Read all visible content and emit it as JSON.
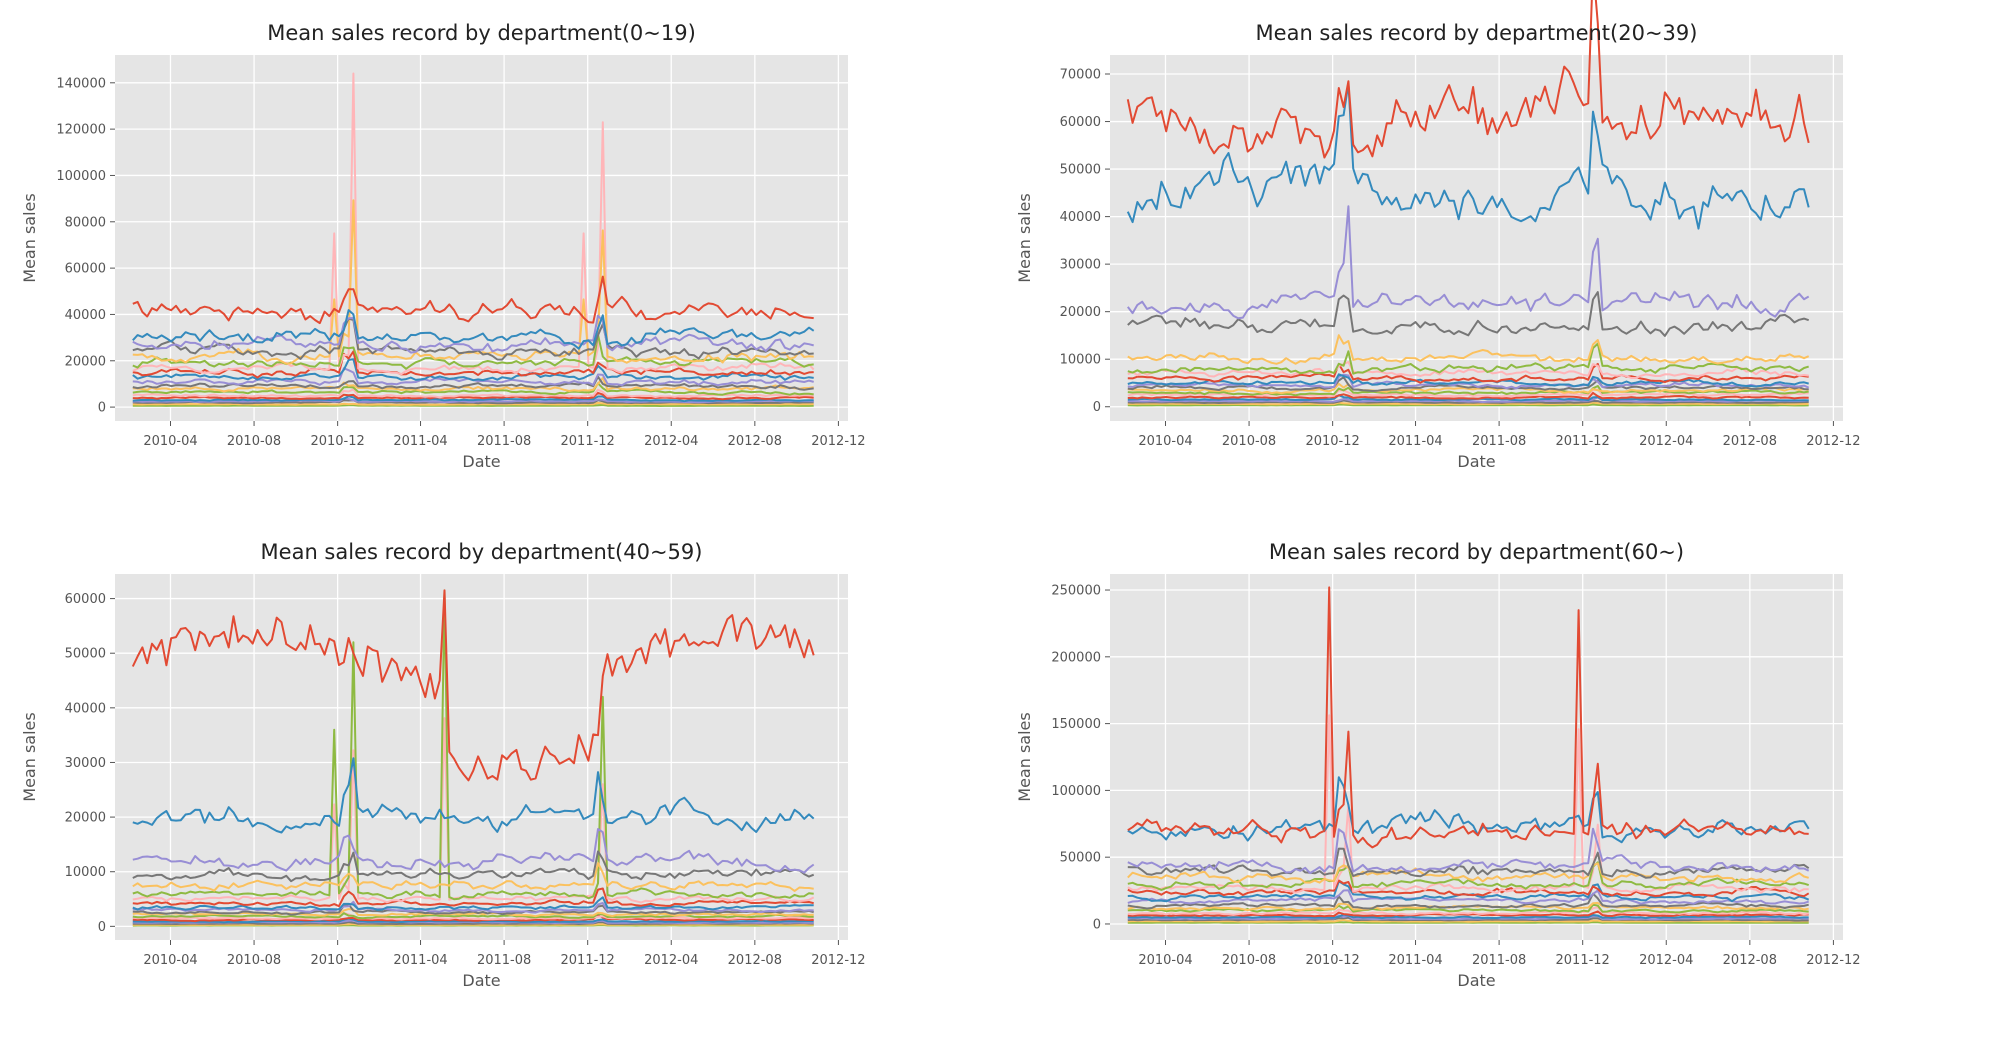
{
  "palette": [
    "#E24A33",
    "#348ABD",
    "#988ED5",
    "#777777",
    "#FBC15E",
    "#8EBA42",
    "#FFB5B8"
  ],
  "chart_data": [
    {
      "type": "line",
      "title": "Mean sales record by department(0~19)",
      "xlabel": "Date",
      "ylabel": "Mean sales",
      "xlim": [
        "2010-01-10",
        "2012-12-15"
      ],
      "ylim": [
        -6000,
        152000
      ],
      "xticks": [
        "2010-04",
        "2010-08",
        "2010-12",
        "2011-04",
        "2011-08",
        "2011-12",
        "2012-04",
        "2012-08",
        "2012-12"
      ],
      "yticks": [
        0,
        20000,
        40000,
        60000,
        80000,
        100000,
        120000,
        140000
      ],
      "ytick_labels": [
        "0",
        "20000",
        "40000",
        "60000",
        "80000",
        "100000",
        "120000",
        "140000"
      ],
      "grid": true,
      "series_count": 20,
      "data_start": "2010-02-05",
      "data_end": "2012-10-26",
      "peaks": [
        {
          "date": "2010-11-26",
          "value": 75000
        },
        {
          "date": "2010-12-24",
          "value": 144000
        },
        {
          "date": "2011-11-25",
          "value": 75000
        },
        {
          "date": "2011-12-23",
          "value": 123000
        }
      ]
    },
    {
      "type": "line",
      "title": "Mean sales record by department(20~39)",
      "xlabel": "Date",
      "ylabel": "Mean sales",
      "xlim": [
        "2010-01-10",
        "2012-12-15"
      ],
      "ylim": [
        -3000,
        74000
      ],
      "xticks": [
        "2010-04",
        "2010-08",
        "2010-12",
        "2011-04",
        "2011-08",
        "2011-12",
        "2012-04",
        "2012-08",
        "2012-12"
      ],
      "yticks": [
        0,
        10000,
        20000,
        30000,
        40000,
        50000,
        60000,
        70000
      ],
      "ytick_labels": [
        "0",
        "10000",
        "20000",
        "30000",
        "40000",
        "50000",
        "60000",
        "70000"
      ],
      "grid": true,
      "series_count": 20,
      "data_start": "2010-02-05",
      "data_end": "2012-10-26",
      "peaks": [
        {
          "date": "2010-12-24",
          "value": 68000
        },
        {
          "date": "2011-12-23",
          "value": 57000
        }
      ]
    },
    {
      "type": "line",
      "title": "Mean sales record by department(40~59)",
      "xlabel": "Date",
      "ylabel": "Mean sales",
      "xlim": [
        "2010-01-10",
        "2012-12-15"
      ],
      "ylim": [
        -2500,
        64500
      ],
      "xticks": [
        "2010-04",
        "2010-08",
        "2010-12",
        "2011-04",
        "2011-08",
        "2011-12",
        "2012-04",
        "2012-08",
        "2012-12"
      ],
      "yticks": [
        0,
        10000,
        20000,
        30000,
        40000,
        50000,
        60000
      ],
      "ytick_labels": [
        "0",
        "10000",
        "20000",
        "30000",
        "40000",
        "50000",
        "60000"
      ],
      "grid": true,
      "series_count": 20,
      "data_start": "2010-02-05",
      "data_end": "2012-10-26",
      "peaks": [
        {
          "date": "2010-11-26",
          "value": 36000
        },
        {
          "date": "2010-12-24",
          "value": 52000
        },
        {
          "date": "2011-05-06",
          "value": 61500
        },
        {
          "date": "2011-12-23",
          "value": 42000
        }
      ]
    },
    {
      "type": "line",
      "title": "Mean sales record by department(60~)",
      "xlabel": "Date",
      "ylabel": "Mean sales",
      "xlim": [
        "2010-01-10",
        "2012-12-15"
      ],
      "ylim": [
        -12000,
        262000
      ],
      "xticks": [
        "2010-04",
        "2010-08",
        "2010-12",
        "2011-04",
        "2011-08",
        "2011-12",
        "2012-04",
        "2012-08",
        "2012-12"
      ],
      "yticks": [
        0,
        50000,
        100000,
        150000,
        200000,
        250000
      ],
      "ytick_labels": [
        "0",
        "50000",
        "100000",
        "150000",
        "200000",
        "250000"
      ],
      "grid": true,
      "series_count": 20,
      "data_start": "2010-02-05",
      "data_end": "2012-10-26",
      "peaks": [
        {
          "date": "2010-11-26",
          "value": 252000
        },
        {
          "date": "2010-12-24",
          "value": 144000
        },
        {
          "date": "2011-11-25",
          "value": 235000
        },
        {
          "date": "2011-12-23",
          "value": 120000
        }
      ]
    }
  ]
}
